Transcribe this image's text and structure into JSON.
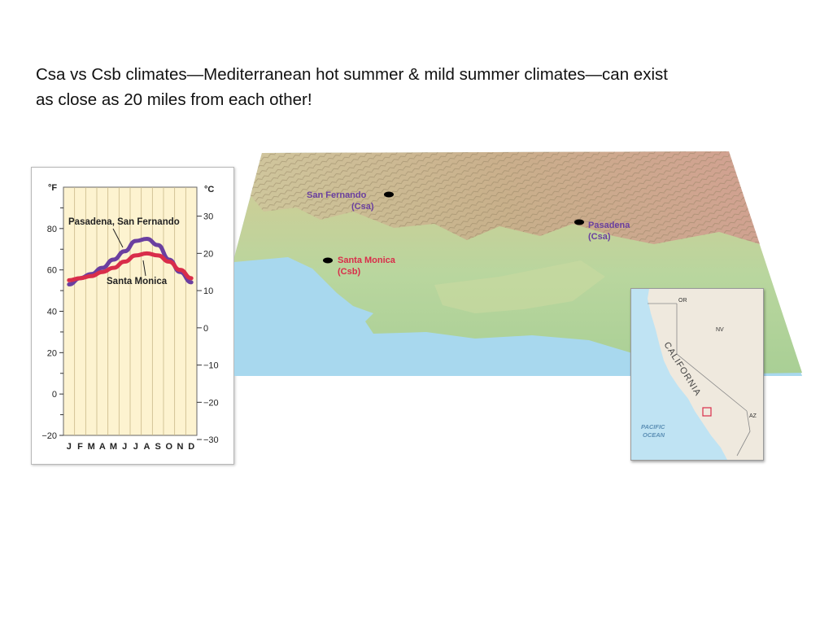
{
  "heading": {
    "line1": "Csa vs Csb climates—Mediterranean hot summer & mild summer climates—can exist",
    "line2": "as close as 20 miles from each other!"
  },
  "chart_data": {
    "type": "line",
    "title": "",
    "xlabel": "",
    "ylabel": "°F",
    "y2label": "°C",
    "categories": [
      "J",
      "F",
      "M",
      "A",
      "M",
      "J",
      "J",
      "A",
      "S",
      "O",
      "N",
      "D"
    ],
    "ylim": [
      -20,
      100
    ],
    "y_ticks": [
      "−20",
      "0",
      "20",
      "40",
      "60",
      "80"
    ],
    "y2_ticks": [
      "−30",
      "−20",
      "−10",
      "0",
      "10",
      "20",
      "30"
    ],
    "grid": "vertical month bands",
    "series": [
      {
        "name": "Pasadena, San Fernando",
        "color": "#6a3fa0",
        "values": [
          53,
          56,
          58,
          61,
          65,
          69,
          74,
          75,
          72,
          65,
          59,
          54
        ]
      },
      {
        "name": "Santa Monica",
        "color": "#d92d4a",
        "values": [
          55,
          56,
          57,
          59,
          61,
          64,
          67,
          68,
          67,
          64,
          60,
          56
        ]
      }
    ]
  },
  "map": {
    "places": [
      {
        "name": "San Fernando",
        "climate": "(Csa)",
        "color": "#6a3fa0"
      },
      {
        "name": "Pasadena",
        "climate": "(Csa)",
        "color": "#6a3fa0"
      },
      {
        "name": "Santa Monica",
        "climate": "(Csb)",
        "color": "#d92d4a"
      }
    ],
    "colors": {
      "ocean": "#a8d8ee",
      "lowland": "#b7d59c",
      "mountain": "#c9b28a",
      "peak": "#d49a8e"
    }
  },
  "inset": {
    "state": "CALIFORNIA",
    "neighbors": [
      "OR",
      "NV",
      "AZ"
    ],
    "ocean_line1": "PACIFIC",
    "ocean_line2": "OCEAN"
  }
}
